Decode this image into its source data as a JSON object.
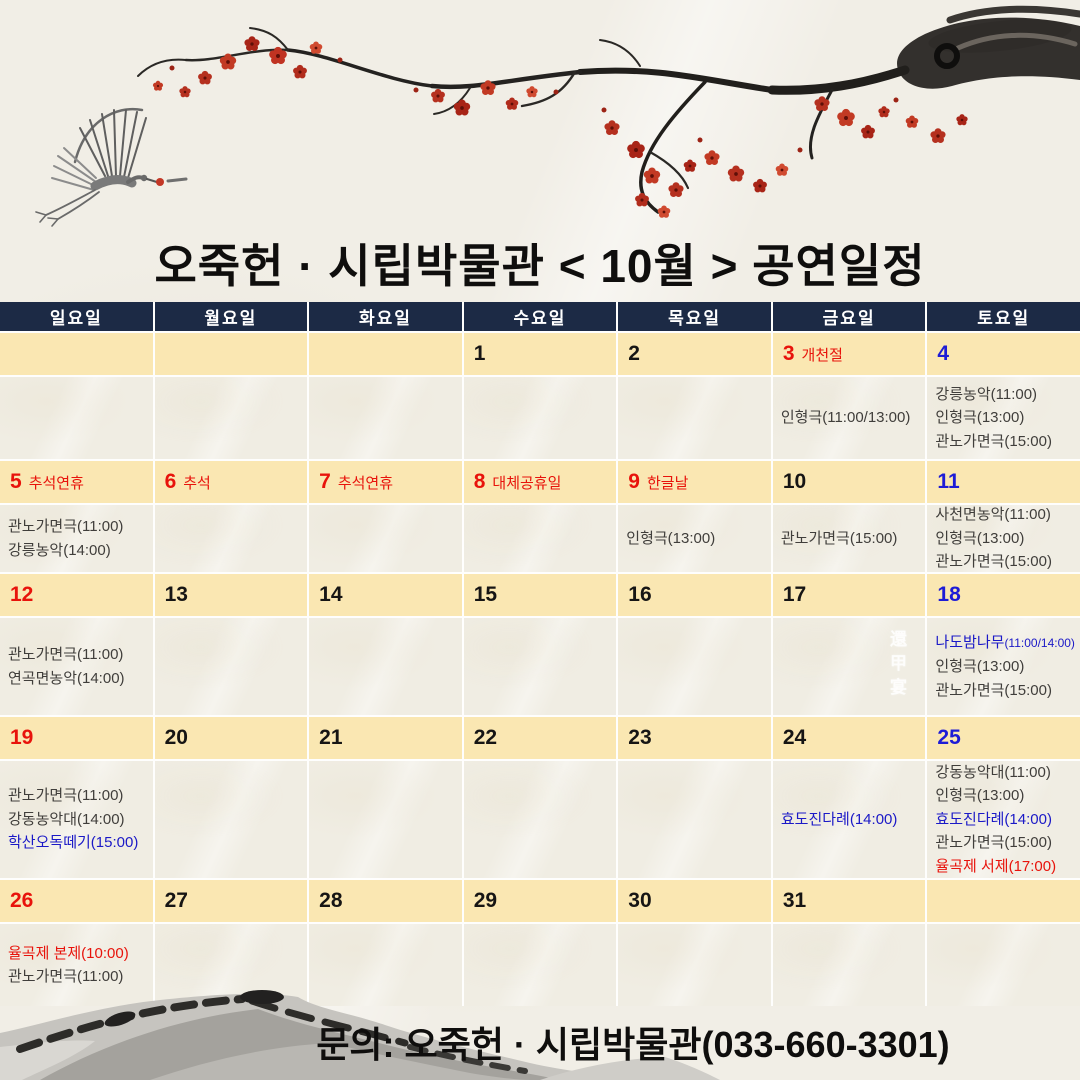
{
  "title": "오죽헌 · 시립박물관 < 10월 > 공연일정",
  "footer": {
    "contact": "문의: 오죽헌 · 시립박물관(033-660-3301)"
  },
  "watermark": "還甲宴",
  "art": {
    "top": "plum-blossom-branch-and-crane-ink-painting",
    "bottom": "ink-wash-mountains"
  },
  "colors": {
    "header_navy": "#1c2a45",
    "date_row_yellow": "#fae7b2",
    "paper": "#f1eee6",
    "holiday_red": "#e8130b",
    "saturday_blue": "#1e1cd6",
    "event_text": "#403e3b",
    "event_blue": "#1b19c7",
    "blossom_red": "#b5301f"
  },
  "calendar": {
    "weekdays": [
      "일요일",
      "월요일",
      "화요일",
      "수요일",
      "목요일",
      "금요일",
      "토요일"
    ],
    "weeks": [
      {
        "days": [
          {
            "date": ""
          },
          {
            "date": ""
          },
          {
            "date": ""
          },
          {
            "date": "1"
          },
          {
            "date": "2"
          },
          {
            "date": "3",
            "color": "red",
            "label": "개천절",
            "events": [
              {
                "text": "인형극(11:00/13:00)"
              }
            ]
          },
          {
            "date": "4",
            "color": "blue",
            "events": [
              {
                "text": "강릉농악(11:00)"
              },
              {
                "text": "인형극(13:00)"
              },
              {
                "text": "관노가면극(15:00)"
              }
            ]
          }
        ]
      },
      {
        "days": [
          {
            "date": "5",
            "color": "red",
            "label": "추석연휴",
            "events": [
              {
                "text": "관노가면극(11:00)"
              },
              {
                "text": "강릉농악(14:00)"
              }
            ]
          },
          {
            "date": "6",
            "color": "red",
            "label": "추석"
          },
          {
            "date": "7",
            "color": "red",
            "label": "추석연휴"
          },
          {
            "date": "8",
            "color": "red",
            "label": "대체공휴일"
          },
          {
            "date": "9",
            "color": "red",
            "label": "한글날",
            "events": [
              {
                "text": "인형극(13:00)"
              }
            ]
          },
          {
            "date": "10",
            "events": [
              {
                "text": "관노가면극(15:00)"
              }
            ]
          },
          {
            "date": "11",
            "color": "blue",
            "events": [
              {
                "text": "사천면농악(11:00)"
              },
              {
                "text": "인형극(13:00)"
              },
              {
                "text": "관노가면극(15:00)"
              }
            ]
          }
        ]
      },
      {
        "days": [
          {
            "date": "12",
            "color": "red",
            "events": [
              {
                "text": "관노가면극(11:00)"
              },
              {
                "text": "연곡면농악(14:00)"
              }
            ]
          },
          {
            "date": "13"
          },
          {
            "date": "14"
          },
          {
            "date": "15"
          },
          {
            "date": "16"
          },
          {
            "date": "17"
          },
          {
            "date": "18",
            "color": "blue",
            "events": [
              {
                "text": "나도밤나무",
                "suffix": "(11:00/14:00)",
                "color": "blue"
              },
              {
                "text": "인형극(13:00)"
              },
              {
                "text": "관노가면극(15:00)"
              }
            ]
          }
        ]
      },
      {
        "days": [
          {
            "date": "19",
            "color": "red",
            "events": [
              {
                "text": "관노가면극(11:00)"
              },
              {
                "text": "강동농악대(14:00)"
              },
              {
                "text": "학산오독떼기(15:00)",
                "color": "blue"
              }
            ]
          },
          {
            "date": "20"
          },
          {
            "date": "21"
          },
          {
            "date": "22"
          },
          {
            "date": "23"
          },
          {
            "date": "24",
            "events": [
              {
                "text": "효도진다례(14:00)",
                "color": "blue"
              }
            ]
          },
          {
            "date": "25",
            "color": "blue",
            "events": [
              {
                "text": "강동농악대(11:00)"
              },
              {
                "text": "인형극(13:00)"
              },
              {
                "text": "효도진다례(14:00)",
                "color": "blue"
              },
              {
                "text": "관노가면극(15:00)"
              },
              {
                "text": "율곡제 서제(17:00)",
                "color": "red"
              }
            ]
          }
        ]
      },
      {
        "days": [
          {
            "date": "26",
            "color": "red",
            "events": [
              {
                "text": "율곡제 본제(10:00)",
                "color": "red"
              },
              {
                "text": "관노가면극(11:00)"
              }
            ]
          },
          {
            "date": "27"
          },
          {
            "date": "28"
          },
          {
            "date": "29"
          },
          {
            "date": "30"
          },
          {
            "date": "31"
          },
          {
            "date": ""
          }
        ]
      }
    ]
  }
}
